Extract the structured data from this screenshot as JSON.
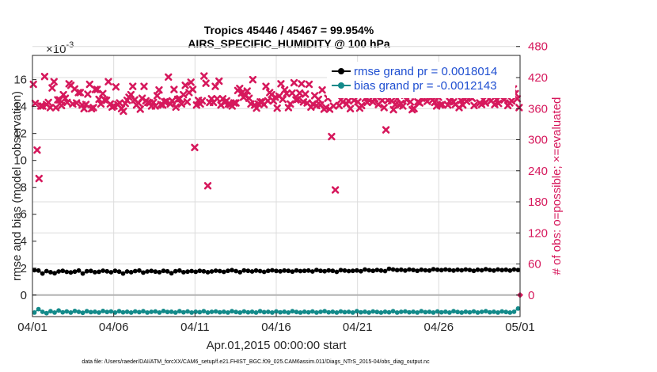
{
  "chart_data": {
    "type": "scatter",
    "title_line1": "Tropics 45446 / 45467 = 99.954%",
    "title_line2": "AIRS_SPECIFIC_HUMIDITY @ 100 hPa",
    "exponent_label": "×10",
    "exponent_power": "-3",
    "ylabel_left": "rmse and bias (model - observation)",
    "ylabel_right": "# of obs: o=possible; ×=evaluated",
    "xlabel": "Apr.01,2015 00:00:00 start",
    "footer": "data file: /Users/raeder/DAI/ATM_forcXX/CAM6_setup/f.e21.FHIST_BGC.f09_025.CAM6assim.011/Diags_NTrS_2015-04/obs_diag_output.nc",
    "x_ticks": [
      "04/01",
      "04/06",
      "04/11",
      "04/16",
      "04/21",
      "04/26",
      "05/01"
    ],
    "x_range_days": [
      0,
      30
    ],
    "y_left_ticks": [
      "0",
      "2",
      "4",
      "6",
      "8",
      "10",
      "12",
      "14",
      "16"
    ],
    "y_left_range": [
      -1.6,
      17.8
    ],
    "y_right_ticks": [
      "0",
      "60",
      "120",
      "180",
      "240",
      "300",
      "360",
      "420",
      "480"
    ],
    "y_right_range": [
      -41.6,
      462.8
    ],
    "legend": [
      {
        "label": "rmse grand pr = 0.0018014",
        "color": "#000000"
      },
      {
        "label": "bias grand pr = -0.0012143",
        "color": "#138a8a"
      }
    ],
    "colors": {
      "rmse": "#000000",
      "bias": "#138a8a",
      "obs": "#d6185c",
      "zero_line": "#b3b3b3"
    },
    "series": [
      {
        "name": "rmse",
        "axis": "left",
        "values": [
          1.85,
          1.82,
          1.6,
          1.78,
          1.7,
          1.62,
          1.75,
          1.8,
          1.72,
          1.68,
          1.74,
          1.82,
          1.6,
          1.77,
          1.79,
          1.7,
          1.73,
          1.81,
          1.76,
          1.69,
          1.8,
          1.74,
          1.6,
          1.75,
          1.7,
          1.78,
          1.82,
          1.67,
          1.75,
          1.79,
          1.74,
          1.7,
          1.8,
          1.76,
          1.62,
          1.77,
          1.82,
          1.7,
          1.74,
          1.78,
          1.73,
          1.8,
          1.76,
          1.7,
          1.75,
          1.81,
          1.78,
          1.72,
          1.8,
          1.85,
          1.78,
          1.7,
          1.83,
          1.8,
          1.75,
          1.82,
          1.78,
          1.72,
          1.8,
          1.84,
          1.79,
          1.76,
          1.82,
          1.8,
          1.74,
          1.83,
          1.78,
          1.8,
          1.82,
          1.75,
          1.86,
          1.8,
          1.77,
          1.83,
          1.8,
          1.72,
          1.85,
          1.82,
          1.78,
          1.8,
          1.83,
          1.77,
          1.9,
          1.84,
          1.8,
          1.86,
          1.82,
          1.78,
          1.95,
          1.9,
          1.85,
          1.88,
          1.82,
          1.9,
          1.86,
          1.8,
          1.88,
          1.84,
          1.82,
          1.92,
          1.88,
          1.85,
          1.9,
          1.86,
          1.82,
          1.88,
          1.84,
          1.9,
          1.86,
          1.8,
          1.88,
          1.84,
          1.92,
          1.86,
          1.82,
          1.9,
          1.85,
          1.88,
          1.82,
          1.9,
          1.86
        ]
      },
      {
        "name": "bias",
        "axis": "left",
        "values": [
          -1.3,
          -1.05,
          -1.25,
          -1.35,
          -1.2,
          -1.3,
          -1.15,
          -1.28,
          -1.22,
          -1.3,
          -1.18,
          -1.25,
          -1.32,
          -1.2,
          -1.27,
          -1.24,
          -1.3,
          -1.18,
          -1.26,
          -1.22,
          -1.3,
          -1.2,
          -1.28,
          -1.24,
          -1.3,
          -1.22,
          -1.27,
          -1.2,
          -1.3,
          -1.25,
          -1.22,
          -1.3,
          -1.18,
          -1.26,
          -1.24,
          -1.3,
          -1.2,
          -1.28,
          -1.22,
          -1.3,
          -1.24,
          -1.27,
          -1.2,
          -1.3,
          -1.25,
          -1.22,
          -1.28,
          -1.24,
          -1.3,
          -1.2,
          -1.26,
          -1.3,
          -1.22,
          -1.28,
          -1.24,
          -1.3,
          -1.2,
          -1.27,
          -1.25,
          -1.3,
          -1.22,
          -1.28,
          -1.24,
          -1.3,
          -1.2,
          -1.26,
          -1.3,
          -1.24,
          -1.28,
          -1.22,
          -1.3,
          -1.25,
          -1.2,
          -1.28,
          -1.24,
          -1.3,
          -1.22,
          -1.27,
          -1.25,
          -1.3,
          -1.2,
          -1.28,
          -1.24,
          -1.3,
          -1.22,
          -1.26,
          -1.3,
          -1.24,
          -1.28,
          -1.2,
          -1.3,
          -1.25,
          -1.22,
          -1.28,
          -1.24,
          -1.3,
          -1.2,
          -1.27,
          -1.25,
          -1.3,
          -1.22,
          -1.28,
          -1.24,
          -1.3,
          -1.2,
          -1.26,
          -1.3,
          -1.24,
          -1.28,
          -1.22,
          -1.3,
          -1.25,
          -1.2,
          -1.28,
          -1.24,
          -1.3,
          -1.22,
          -1.26,
          -1.3,
          -1.24,
          -1.0
        ]
      },
      {
        "name": "obs_evaluated",
        "axis": "right",
        "values": [
          407,
          370,
          280,
          225,
          365,
          365,
          422,
          368,
          372,
          362,
          400,
          412,
          362,
          377,
          377,
          366,
          387,
          380,
          372,
          408,
          405,
          369,
          398,
          371,
          391,
          391,
          367,
          360,
          368,
          388,
          407,
          360,
          362,
          397,
          397,
          378,
          369,
          389,
          377,
          376,
          412,
          369,
          363,
          365,
          402,
          368,
          371,
          360,
          355,
          370,
          376,
          382,
          387,
          403,
          377,
          367,
          371,
          359,
          380,
          403,
          375,
          372,
          371,
          365,
          372,
          365,
          385,
          396,
          368,
          367,
          373,
          374,
          421,
          369,
          375,
          397,
          363,
          378,
          379,
          369,
          387,
          405,
          373,
          391,
          411,
          397,
          285,
          367,
          376,
          369,
          375,
          423,
          409,
          211,
          372,
          379,
          372,
          403,
          379,
          413,
          367,
          379,
          372,
          375,
          369,
          368,
          365,
          371,
          371,
          395,
          399,
          390,
          382,
          385,
          394,
          380,
          369,
          416,
          367,
          361,
          369,
          373,
          373,
          368,
          403,
          375,
          391,
          387,
          375,
          382,
          361,
          384,
          408,
          378,
          396,
          389,
          362,
          369,
          390,
          410,
          377,
          378,
          390,
          408,
          373,
          388,
          371,
          407,
          363,
          369,
          385,
          366,
          378,
          367,
          396,
          359,
          362,
          380,
          359,
          306,
          365,
          203,
          396,
          366,
          377,
          373,
          392,
          369,
          375,
          360,
          396,
          376,
          390,
          373,
          361,
          366,
          410,
          380,
          372,
          376,
          400,
          373,
          379,
          383,
          368,
          390,
          376,
          362,
          319,
          376,
          417,
          375,
          358,
          368,
          379,
          367,
          370,
          365,
          386,
          377,
          387,
          373,
          358,
          360,
          410,
          373,
          371,
          380,
          391,
          405,
          374,
          383,
          398,
          377,
          372,
          365,
          382,
          367,
          368,
          388,
          415,
          367,
          374,
          380,
          373,
          368,
          392,
          362,
          376,
          367,
          378,
          374,
          395,
          383,
          380,
          366,
          397,
          394,
          371,
          368,
          377,
          371,
          412,
          379,
          375,
          395,
          368,
          378,
          370,
          383,
          389,
          377,
          399,
          366,
          371,
          375,
          398,
          389,
          379,
          362
        ]
      }
    ]
  }
}
